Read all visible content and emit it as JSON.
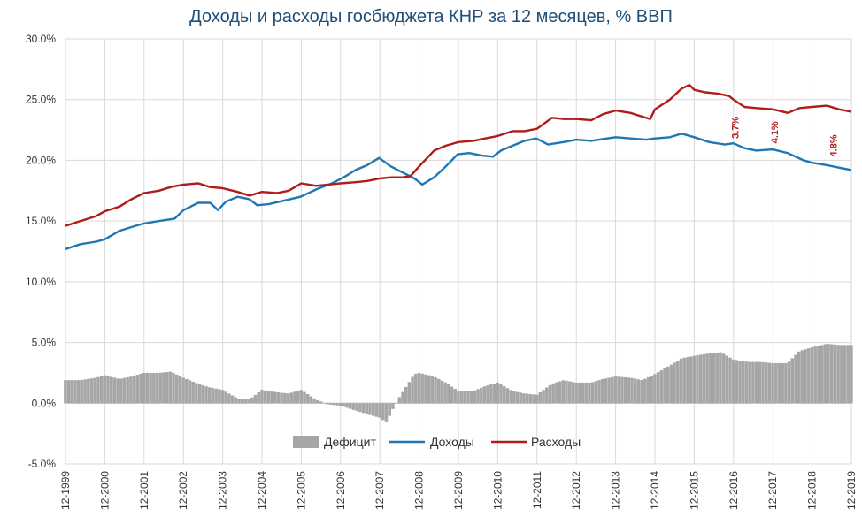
{
  "chart_data": {
    "type": "bar+line",
    "title": "Доходы и расходы госбюджета КНР за 12 месяцев, % ВВП",
    "y_ticks": [
      "30.0%",
      "25.0%",
      "20.0%",
      "15.0%",
      "10.0%",
      "5.0%",
      "0.0%",
      "-5.0%"
    ],
    "y_range": [
      -5,
      30
    ],
    "x_ticks": [
      "12-1999",
      "12-2000",
      "12-2001",
      "12-2002",
      "12-2003",
      "12-2004",
      "12-2005",
      "12-2006",
      "12-2007",
      "12-2008",
      "12-2009",
      "12-2010",
      "12-2011",
      "12-2012",
      "12-2013",
      "12-2014",
      "12-2015",
      "12-2016",
      "12-2017",
      "12-2018",
      "12-2019"
    ],
    "x_range": [
      1999.92,
      2019.92
    ],
    "legend": [
      "Дефицит",
      "Доходы",
      "Расходы"
    ],
    "colors": {
      "deficit": "#a6a6a6",
      "revenue": "#1f77b4",
      "expenditure": "#b01c1c",
      "grid": "#d9d9d9",
      "annotation": "#b01c1c"
    },
    "series": {
      "revenue": [
        [
          1999.92,
          12.7
        ],
        [
          2000.3,
          13.1
        ],
        [
          2000.7,
          13.3
        ],
        [
          2000.92,
          13.5
        ],
        [
          2001.3,
          14.2
        ],
        [
          2001.7,
          14.6
        ],
        [
          2001.92,
          14.8
        ],
        [
          2002.3,
          15.0
        ],
        [
          2002.7,
          15.2
        ],
        [
          2002.92,
          15.9
        ],
        [
          2003.3,
          16.5
        ],
        [
          2003.6,
          16.5
        ],
        [
          2003.8,
          15.9
        ],
        [
          2004.0,
          16.6
        ],
        [
          2004.3,
          17.0
        ],
        [
          2004.6,
          16.8
        ],
        [
          2004.8,
          16.3
        ],
        [
          2005.1,
          16.4
        ],
        [
          2005.5,
          16.7
        ],
        [
          2005.9,
          17.0
        ],
        [
          2006.3,
          17.6
        ],
        [
          2006.7,
          18.1
        ],
        [
          2007.0,
          18.6
        ],
        [
          2007.3,
          19.2
        ],
        [
          2007.6,
          19.6
        ],
        [
          2007.9,
          20.2
        ],
        [
          2008.2,
          19.5
        ],
        [
          2008.5,
          19.0
        ],
        [
          2008.8,
          18.5
        ],
        [
          2009.0,
          18.0
        ],
        [
          2009.3,
          18.6
        ],
        [
          2009.6,
          19.5
        ],
        [
          2009.9,
          20.5
        ],
        [
          2010.2,
          20.6
        ],
        [
          2010.5,
          20.4
        ],
        [
          2010.8,
          20.3
        ],
        [
          2011.0,
          20.8
        ],
        [
          2011.3,
          21.2
        ],
        [
          2011.6,
          21.6
        ],
        [
          2011.9,
          21.8
        ],
        [
          2012.2,
          21.3
        ],
        [
          2012.6,
          21.5
        ],
        [
          2012.92,
          21.7
        ],
        [
          2013.3,
          21.6
        ],
        [
          2013.7,
          21.8
        ],
        [
          2013.92,
          21.9
        ],
        [
          2014.3,
          21.8
        ],
        [
          2014.7,
          21.7
        ],
        [
          2014.92,
          21.8
        ],
        [
          2015.3,
          21.9
        ],
        [
          2015.6,
          22.2
        ],
        [
          2015.92,
          21.9
        ],
        [
          2016.3,
          21.5
        ],
        [
          2016.7,
          21.3
        ],
        [
          2016.92,
          21.4
        ],
        [
          2017.2,
          21.0
        ],
        [
          2017.5,
          20.8
        ],
        [
          2017.92,
          20.9
        ],
        [
          2018.3,
          20.6
        ],
        [
          2018.7,
          20.0
        ],
        [
          2018.92,
          19.8
        ],
        [
          2019.3,
          19.6
        ],
        [
          2019.6,
          19.4
        ],
        [
          2019.92,
          19.2
        ]
      ],
      "expenditure": [
        [
          1999.92,
          14.6
        ],
        [
          2000.3,
          15.0
        ],
        [
          2000.7,
          15.4
        ],
        [
          2000.92,
          15.8
        ],
        [
          2001.3,
          16.2
        ],
        [
          2001.6,
          16.8
        ],
        [
          2001.92,
          17.3
        ],
        [
          2002.3,
          17.5
        ],
        [
          2002.6,
          17.8
        ],
        [
          2002.92,
          18.0
        ],
        [
          2003.3,
          18.1
        ],
        [
          2003.6,
          17.8
        ],
        [
          2003.92,
          17.7
        ],
        [
          2004.3,
          17.4
        ],
        [
          2004.6,
          17.1
        ],
        [
          2004.92,
          17.4
        ],
        [
          2005.3,
          17.3
        ],
        [
          2005.6,
          17.5
        ],
        [
          2005.92,
          18.1
        ],
        [
          2006.3,
          17.9
        ],
        [
          2006.6,
          18.0
        ],
        [
          2006.92,
          18.1
        ],
        [
          2007.3,
          18.2
        ],
        [
          2007.6,
          18.3
        ],
        [
          2007.92,
          18.5
        ],
        [
          2008.2,
          18.6
        ],
        [
          2008.5,
          18.6
        ],
        [
          2008.7,
          18.7
        ],
        [
          2008.92,
          19.5
        ],
        [
          2009.3,
          20.8
        ],
        [
          2009.6,
          21.2
        ],
        [
          2009.92,
          21.5
        ],
        [
          2010.3,
          21.6
        ],
        [
          2010.6,
          21.8
        ],
        [
          2010.92,
          22.0
        ],
        [
          2011.3,
          22.4
        ],
        [
          2011.6,
          22.4
        ],
        [
          2011.92,
          22.6
        ],
        [
          2012.3,
          23.5
        ],
        [
          2012.6,
          23.4
        ],
        [
          2012.92,
          23.4
        ],
        [
          2013.3,
          23.3
        ],
        [
          2013.6,
          23.8
        ],
        [
          2013.92,
          24.1
        ],
        [
          2014.3,
          23.9
        ],
        [
          2014.6,
          23.6
        ],
        [
          2014.8,
          23.4
        ],
        [
          2014.92,
          24.2
        ],
        [
          2015.3,
          25.0
        ],
        [
          2015.6,
          25.9
        ],
        [
          2015.8,
          26.2
        ],
        [
          2015.92,
          25.8
        ],
        [
          2016.2,
          25.6
        ],
        [
          2016.5,
          25.5
        ],
        [
          2016.8,
          25.3
        ],
        [
          2016.92,
          25.0
        ],
        [
          2017.2,
          24.4
        ],
        [
          2017.5,
          24.3
        ],
        [
          2017.92,
          24.2
        ],
        [
          2018.3,
          23.9
        ],
        [
          2018.6,
          24.3
        ],
        [
          2018.92,
          24.4
        ],
        [
          2019.3,
          24.5
        ],
        [
          2019.6,
          24.2
        ],
        [
          2019.92,
          24.0
        ]
      ],
      "deficit": [
        [
          1999.92,
          1.9
        ],
        [
          2000.3,
          1.9
        ],
        [
          2000.7,
          2.1
        ],
        [
          2000.92,
          2.3
        ],
        [
          2001.3,
          2.0
        ],
        [
          2001.6,
          2.2
        ],
        [
          2001.92,
          2.5
        ],
        [
          2002.3,
          2.5
        ],
        [
          2002.6,
          2.6
        ],
        [
          2002.92,
          2.1
        ],
        [
          2003.3,
          1.6
        ],
        [
          2003.6,
          1.3
        ],
        [
          2003.92,
          1.1
        ],
        [
          2004.3,
          0.4
        ],
        [
          2004.6,
          0.3
        ],
        [
          2004.92,
          1.1
        ],
        [
          2005.3,
          0.9
        ],
        [
          2005.6,
          0.8
        ],
        [
          2005.92,
          1.1
        ],
        [
          2006.3,
          0.3
        ],
        [
          2006.6,
          -0.1
        ],
        [
          2006.92,
          -0.2
        ],
        [
          2007.3,
          -0.6
        ],
        [
          2007.6,
          -0.9
        ],
        [
          2007.92,
          -1.2
        ],
        [
          2008.1,
          -1.6
        ],
        [
          2008.2,
          -0.8
        ],
        [
          2008.4,
          0.4
        ],
        [
          2008.6,
          1.4
        ],
        [
          2008.8,
          2.4
        ],
        [
          2008.92,
          2.5
        ],
        [
          2009.3,
          2.2
        ],
        [
          2009.6,
          1.7
        ],
        [
          2009.92,
          1.0
        ],
        [
          2010.3,
          1.0
        ],
        [
          2010.6,
          1.4
        ],
        [
          2010.92,
          1.7
        ],
        [
          2011.3,
          1.0
        ],
        [
          2011.6,
          0.8
        ],
        [
          2011.92,
          0.7
        ],
        [
          2012.3,
          1.6
        ],
        [
          2012.6,
          1.9
        ],
        [
          2012.92,
          1.7
        ],
        [
          2013.3,
          1.7
        ],
        [
          2013.6,
          2.0
        ],
        [
          2013.92,
          2.2
        ],
        [
          2014.3,
          2.1
        ],
        [
          2014.6,
          1.9
        ],
        [
          2014.92,
          2.4
        ],
        [
          2015.3,
          3.1
        ],
        [
          2015.6,
          3.7
        ],
        [
          2015.92,
          3.9
        ],
        [
          2016.3,
          4.1
        ],
        [
          2016.6,
          4.2
        ],
        [
          2016.92,
          3.6
        ],
        [
          2017.3,
          3.4
        ],
        [
          2017.6,
          3.4
        ],
        [
          2017.92,
          3.3
        ],
        [
          2018.3,
          3.3
        ],
        [
          2018.6,
          4.3
        ],
        [
          2018.92,
          4.6
        ],
        [
          2019.3,
          4.9
        ],
        [
          2019.6,
          4.8
        ],
        [
          2019.92,
          4.8
        ]
      ]
    },
    "annotations": [
      {
        "text": "3.7%",
        "x": 2017.05,
        "y": 22.7
      },
      {
        "text": "4.1%",
        "x": 2018.05,
        "y": 22.3
      },
      {
        "text": "4.8%",
        "x": 2019.55,
        "y": 21.2
      }
    ]
  }
}
